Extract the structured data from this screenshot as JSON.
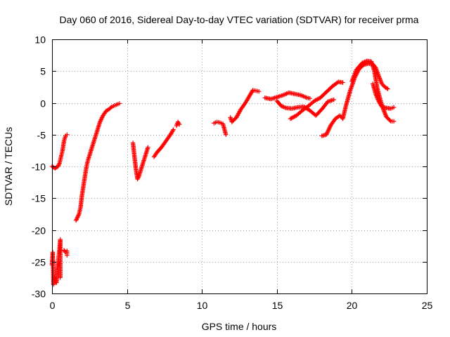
{
  "chart_data": {
    "type": "scatter",
    "title": "Day 060 of 2016, Sidereal Day-to-day VTEC variation (SDTVAR) for receiver prma",
    "xlabel": "GPS time / hours",
    "ylabel": "SDTVAR / TECUs",
    "xlim": [
      0,
      25
    ],
    "ylim": [
      -30,
      10
    ],
    "xticks": [
      0,
      5,
      10,
      15,
      20,
      25
    ],
    "yticks": [
      10,
      5,
      0,
      -5,
      -10,
      -15,
      -20,
      -25,
      -30
    ],
    "xtick_labels": [
      "0",
      "5",
      "10",
      "15",
      "20",
      "25"
    ],
    "ytick_labels": [
      "10",
      "5",
      "0",
      "-5",
      "-10",
      "-15",
      "-20",
      "-25",
      "-30"
    ],
    "grid": true,
    "legend": false,
    "marker": "+",
    "color": "#ff0000",
    "series": [
      {
        "name": "SDTVAR",
        "segments": [
          [
            [
              0.0,
              -10.0
            ],
            [
              0.2,
              -10.3
            ],
            [
              0.4,
              -10.0
            ],
            [
              0.5,
              -9.5
            ],
            [
              0.6,
              -8.5
            ],
            [
              0.7,
              -7.5
            ],
            [
              0.8,
              -6.0
            ],
            [
              0.9,
              -5.2
            ],
            [
              1.0,
              -5.0
            ]
          ],
          [
            [
              0.0,
              -25.5
            ],
            [
              0.05,
              -23.5
            ],
            [
              0.1,
              -28.6
            ],
            [
              0.15,
              -27.5
            ],
            [
              0.2,
              -28.0
            ],
            [
              0.3,
              -28.3
            ],
            [
              0.35,
              -26.0
            ],
            [
              0.4,
              -25.0
            ],
            [
              0.45,
              -24.0
            ],
            [
              0.5,
              -23.0
            ],
            [
              0.55,
              -21.5
            ],
            [
              0.55,
              -27.5
            ]
          ],
          [
            [
              0.8,
              -23.2
            ],
            [
              0.9,
              -23.5
            ],
            [
              1.0,
              -23.3
            ],
            [
              1.0,
              -24.0
            ]
          ],
          [
            [
              1.6,
              -18.5
            ],
            [
              1.8,
              -17.5
            ],
            [
              1.9,
              -16.5
            ],
            [
              2.0,
              -14.5
            ],
            [
              2.1,
              -13.0
            ],
            [
              2.2,
              -11.5
            ],
            [
              2.3,
              -10.0
            ],
            [
              2.4,
              -9.0
            ],
            [
              2.6,
              -7.5
            ],
            [
              2.8,
              -6.0
            ],
            [
              3.0,
              -4.5
            ],
            [
              3.2,
              -3.0
            ],
            [
              3.4,
              -2.0
            ],
            [
              3.6,
              -1.3
            ],
            [
              3.8,
              -1.0
            ],
            [
              4.0,
              -0.6
            ],
            [
              4.2,
              -0.4
            ],
            [
              4.4,
              -0.2
            ],
            [
              4.5,
              -0.1
            ]
          ],
          [
            [
              5.4,
              -6.3
            ],
            [
              5.5,
              -8.5
            ],
            [
              5.6,
              -10.5
            ],
            [
              5.7,
              -12.0
            ],
            [
              5.8,
              -11.5
            ],
            [
              6.0,
              -10.0
            ],
            [
              6.2,
              -8.5
            ],
            [
              6.4,
              -7.0
            ]
          ],
          [
            [
              6.8,
              -8.5
            ],
            [
              7.0,
              -7.8
            ],
            [
              7.3,
              -7.0
            ],
            [
              7.6,
              -6.0
            ],
            [
              7.9,
              -5.0
            ],
            [
              8.1,
              -4.2
            ]
          ],
          [
            [
              8.3,
              -3.6
            ],
            [
              8.4,
              -3.0
            ],
            [
              8.5,
              -3.4
            ]
          ],
          [
            [
              10.8,
              -3.2
            ],
            [
              11.0,
              -3.0
            ],
            [
              11.2,
              -3.1
            ],
            [
              11.4,
              -3.3
            ],
            [
              11.6,
              -5.0
            ]
          ],
          [
            [
              11.9,
              -2.3
            ],
            [
              12.0,
              -3.0
            ],
            [
              12.3,
              -2.3
            ],
            [
              12.6,
              -1.0
            ],
            [
              12.9,
              0.0
            ],
            [
              13.2,
              1.2
            ],
            [
              13.4,
              2.0
            ],
            [
              13.6,
              1.9
            ],
            [
              13.8,
              1.8
            ]
          ],
          [
            [
              14.2,
              0.8
            ],
            [
              14.6,
              0.6
            ],
            [
              15.0,
              0.9
            ],
            [
              15.4,
              1.2
            ],
            [
              15.8,
              1.6
            ],
            [
              16.2,
              1.4
            ],
            [
              16.6,
              1.2
            ],
            [
              17.0,
              0.8
            ],
            [
              17.2,
              0.7
            ]
          ],
          [
            [
              15.0,
              0.3
            ],
            [
              15.3,
              -0.5
            ],
            [
              15.6,
              -0.8
            ],
            [
              16.0,
              -0.9
            ],
            [
              16.4,
              -0.7
            ],
            [
              16.8,
              -0.6
            ],
            [
              17.2,
              -1.2
            ],
            [
              17.6,
              -2.0
            ],
            [
              18.0,
              -1.0
            ],
            [
              18.4,
              0.2
            ],
            [
              18.8,
              0.5
            ]
          ],
          [
            [
              15.9,
              -2.5
            ],
            [
              16.3,
              -2.0
            ],
            [
              16.7,
              -1.2
            ],
            [
              17.1,
              -0.5
            ],
            [
              17.5,
              0.3
            ],
            [
              17.9,
              0.8
            ],
            [
              18.3,
              1.7
            ],
            [
              18.7,
              2.6
            ],
            [
              19.1,
              3.3
            ],
            [
              19.4,
              3.2
            ]
          ],
          [
            [
              18.0,
              -5.2
            ],
            [
              18.3,
              -5.0
            ],
            [
              18.6,
              -3.5
            ],
            [
              18.9,
              -2.5
            ],
            [
              19.2,
              -2.0
            ],
            [
              19.4,
              -2.5
            ],
            [
              19.6,
              -0.5
            ],
            [
              19.9,
              2.0
            ],
            [
              20.2,
              4.0
            ],
            [
              20.5,
              5.4
            ],
            [
              20.8,
              6.0
            ],
            [
              21.1,
              6.2
            ],
            [
              21.4,
              6.1
            ],
            [
              21.6,
              5.5
            ],
            [
              21.8,
              4.2
            ],
            [
              22.0,
              3.0
            ],
            [
              22.2,
              2.5
            ],
            [
              22.4,
              2.2
            ]
          ],
          [
            [
              20.0,
              3.4
            ],
            [
              20.3,
              5.2
            ],
            [
              20.7,
              6.3
            ],
            [
              21.0,
              6.6
            ],
            [
              21.3,
              6.5
            ],
            [
              21.5,
              5.0
            ],
            [
              21.7,
              2.3
            ],
            [
              21.9,
              0.5
            ],
            [
              22.1,
              -1.0
            ],
            [
              22.3,
              -2.2
            ],
            [
              22.6,
              -2.9
            ],
            [
              22.8,
              -2.9
            ]
          ],
          [
            [
              21.4,
              3.0
            ],
            [
              21.6,
              1.3
            ],
            [
              21.8,
              0.2
            ],
            [
              22.0,
              -0.6
            ],
            [
              22.3,
              -0.8
            ],
            [
              22.6,
              -0.9
            ],
            [
              22.8,
              -0.7
            ]
          ]
        ]
      }
    ]
  }
}
